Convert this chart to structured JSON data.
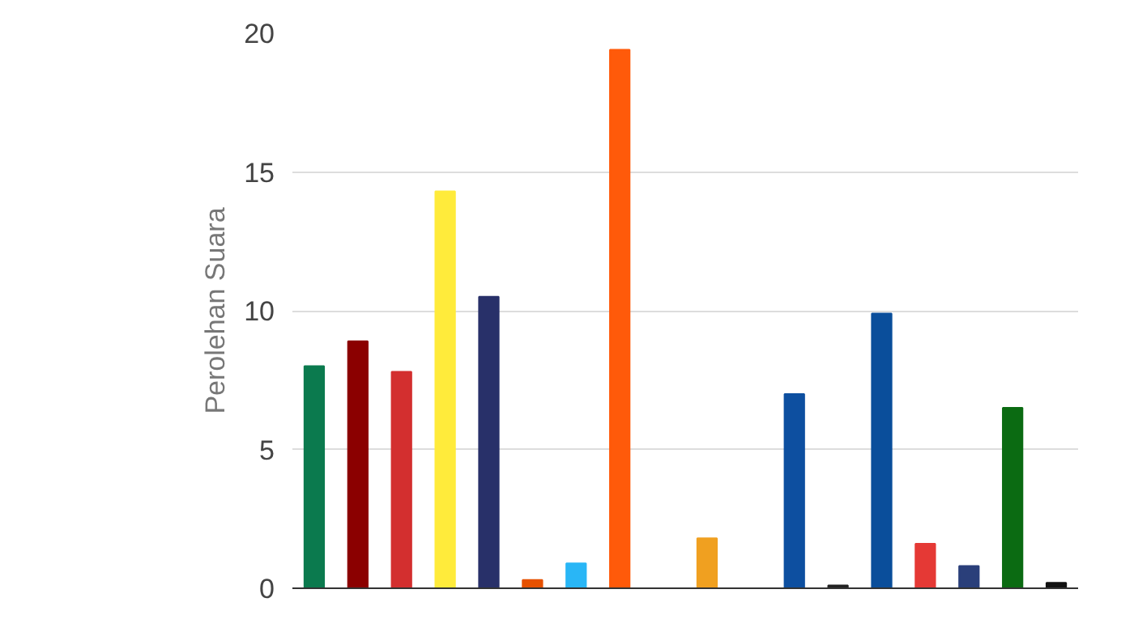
{
  "chart_data": {
    "type": "bar",
    "ylabel": "Perolehan Suara",
    "categories": [
      null,
      null,
      null,
      null,
      null,
      null,
      null,
      null,
      null,
      null,
      null,
      null,
      null,
      null,
      null,
      null,
      null,
      null
    ],
    "values": [
      8.0,
      8.9,
      7.8,
      14.3,
      10.5,
      0.3,
      0.9,
      19.4,
      0,
      1.8,
      0,
      7.0,
      0.1,
      9.9,
      1.6,
      0.8,
      6.5,
      0.2
    ],
    "colors": [
      "#0b7a4e",
      "#8b0000",
      "#d32f2f",
      "#ffeb3b",
      "#283069",
      "#e65100",
      "#29b6f6",
      "#ff5a0a",
      "#999999",
      "#f0a020",
      "#999999",
      "#0d4fa0",
      "#222222",
      "#0a4e9b",
      "#e53935",
      "#2a3f7a",
      "#0b6b12",
      "#111111"
    ],
    "ylim": [
      0,
      20
    ],
    "yticks": [
      0,
      5,
      10,
      15,
      20
    ],
    "grid": "y"
  }
}
